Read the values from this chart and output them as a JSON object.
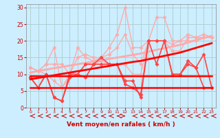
{
  "x": [
    0,
    1,
    2,
    3,
    4,
    5,
    6,
    7,
    8,
    9,
    10,
    11,
    12,
    13,
    14,
    15,
    16,
    17,
    18,
    19,
    20,
    21,
    22,
    23
  ],
  "background_color": "#cceeff",
  "grid_color": "#aacccc",
  "xlabel": "Vent moyen/en rafales ( km/h )",
  "xlabel_color": "#cc0000",
  "ylim": [
    0,
    31
  ],
  "yticks": [
    0,
    5,
    10,
    15,
    20,
    25,
    30
  ],
  "lines": [
    {
      "y": [
        12,
        11,
        13,
        18,
        6,
        10,
        18,
        15,
        14,
        15,
        18,
        22,
        30,
        18,
        18,
        20,
        27,
        27,
        20,
        20,
        22,
        21,
        22,
        21
      ],
      "color": "#ffaaaa",
      "marker": "D",
      "markersize": 2.5,
      "linewidth": 1.0,
      "zorder": 2
    },
    {
      "y": [
        12,
        11,
        13,
        13,
        13,
        10,
        15,
        16,
        15,
        15,
        16,
        18,
        22,
        16,
        13,
        20,
        20,
        20,
        19,
        20,
        20,
        20,
        21,
        21
      ],
      "color": "#ffaaaa",
      "marker": "D",
      "markersize": 2.5,
      "linewidth": 1.0,
      "zorder": 2
    },
    {
      "y": [
        12,
        11,
        10,
        8,
        6,
        9,
        10,
        13,
        13,
        14,
        13,
        13,
        13,
        10,
        10,
        20,
        20,
        20,
        17,
        17,
        21,
        21,
        21,
        21
      ],
      "color": "#ffaaaa",
      "marker": "D",
      "markersize": 2.5,
      "linewidth": 1.0,
      "zorder": 2
    },
    {
      "y": [
        9,
        6,
        10,
        3,
        2,
        10,
        10,
        9,
        13,
        13,
        13,
        13,
        7,
        6,
        4,
        20,
        20,
        20,
        10,
        10,
        14,
        12,
        16,
        6
      ],
      "color": "#ff4444",
      "marker": "D",
      "markersize": 2.5,
      "linewidth": 1.2,
      "zorder": 3
    },
    {
      "y": [
        9,
        6,
        10,
        3,
        2,
        9,
        10,
        13,
        13,
        15,
        13,
        13,
        8,
        8,
        3,
        20,
        13,
        20,
        10,
        10,
        13,
        12,
        6,
        6
      ],
      "color": "#ff4444",
      "marker": "D",
      "markersize": 2.5,
      "linewidth": 1.2,
      "zorder": 3
    },
    {
      "y": [
        6,
        6,
        6,
        6,
        6,
        6,
        6,
        6,
        6,
        6,
        6,
        6,
        6,
        6,
        6,
        6,
        6,
        6,
        6,
        6,
        6,
        6,
        6,
        6
      ],
      "color": "#ff0000",
      "marker": null,
      "markersize": 0,
      "linewidth": 1.8,
      "zorder": 4
    },
    {
      "y": [
        9.5,
        9.5,
        9.5,
        9.5,
        9.5,
        9.5,
        9.5,
        9.5,
        9.5,
        9.5,
        9.5,
        9.5,
        9.5,
        9.5,
        9.5,
        9.5,
        9.5,
        9.5,
        9.5,
        9.5,
        9.5,
        9.5,
        9.5,
        9.5
      ],
      "color": "#ff0000",
      "marker": null,
      "markersize": 0,
      "linewidth": 1.8,
      "zorder": 4
    },
    {
      "y": [
        10.5,
        11.0,
        11.4,
        11.8,
        12.2,
        12.6,
        13.0,
        13.4,
        13.8,
        14.2,
        14.6,
        15.0,
        15.4,
        15.8,
        16.2,
        16.8,
        17.3,
        17.8,
        18.3,
        18.8,
        19.5,
        20.2,
        20.9,
        21.5
      ],
      "color": "#ffaaaa",
      "marker": null,
      "markersize": 0,
      "linewidth": 2.0,
      "zorder": 2
    },
    {
      "y": [
        8.5,
        8.9,
        9.3,
        9.7,
        10.1,
        10.5,
        10.9,
        11.3,
        11.7,
        12.1,
        12.5,
        12.9,
        13.3,
        13.7,
        14.0,
        14.5,
        15.0,
        15.5,
        16.0,
        16.5,
        17.2,
        17.9,
        18.6,
        19.3
      ],
      "color": "#ff0000",
      "marker": null,
      "markersize": 0,
      "linewidth": 2.0,
      "zorder": 4
    }
  ],
  "arrows": {
    "y_data": -2.5,
    "color": "#cc0000",
    "positions": [
      0,
      1,
      2,
      3,
      4,
      5,
      6,
      7,
      8,
      9,
      10,
      11,
      12,
      13,
      14,
      15,
      16,
      17,
      18,
      19,
      20,
      21,
      22,
      23
    ],
    "directions": [
      -1,
      -1,
      -1,
      -1,
      -1,
      -1,
      -1,
      -1,
      -1,
      -1,
      -1,
      -1,
      1,
      -1,
      -1,
      -1,
      -1,
      -1,
      -1,
      -1,
      -1,
      -1,
      -1,
      -1
    ]
  }
}
